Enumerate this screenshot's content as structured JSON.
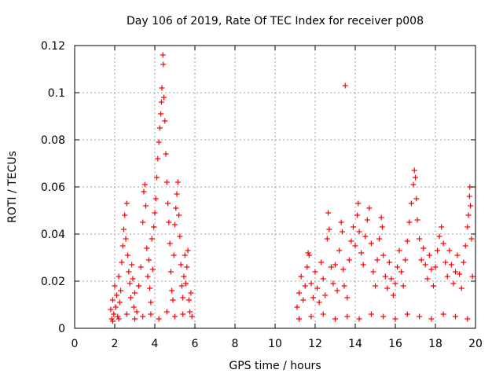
{
  "chart_data": {
    "type": "scatter",
    "title": "Day 106 of 2019, Rate Of TEC Index for receiver p008",
    "xlabel": "GPS time / hours",
    "ylabel": "ROTI / TECUs",
    "xlim": [
      0,
      20
    ],
    "ylim": [
      0,
      0.12
    ],
    "x_ticks": [
      "0",
      "2",
      "4",
      "6",
      "8",
      "10",
      "12",
      "14",
      "16",
      "18",
      "20"
    ],
    "y_ticks": [
      "0",
      "0.02",
      "0.04",
      "0.06",
      "0.08",
      "0.1",
      "0.12"
    ],
    "grid": true,
    "marker": "+",
    "color": "#ff0000",
    "series": [
      {
        "name": "ROTI",
        "points": [
          [
            1.8,
            0.008
          ],
          [
            1.85,
            0.004
          ],
          [
            1.9,
            0.012
          ],
          [
            1.95,
            0.006
          ],
          [
            2.0,
            0.018
          ],
          [
            2.05,
            0.009
          ],
          [
            2.1,
            0.014
          ],
          [
            2.15,
            0.005
          ],
          [
            2.2,
            0.022
          ],
          [
            2.25,
            0.011
          ],
          [
            2.3,
            0.016
          ],
          [
            2.35,
            0.028
          ],
          [
            2.4,
            0.035
          ],
          [
            2.45,
            0.042
          ],
          [
            2.5,
            0.048
          ],
          [
            2.55,
            0.038
          ],
          [
            2.6,
            0.053
          ],
          [
            2.65,
            0.031
          ],
          [
            2.7,
            0.024
          ],
          [
            2.75,
            0.019
          ],
          [
            2.8,
            0.013
          ],
          [
            2.85,
            0.027
          ],
          [
            2.9,
            0.021
          ],
          [
            2.95,
            0.009
          ],
          [
            3.0,
            0.015
          ],
          [
            3.1,
            0.007
          ],
          [
            3.2,
            0.018
          ],
          [
            3.3,
            0.026
          ],
          [
            3.4,
            0.045
          ],
          [
            3.45,
            0.058
          ],
          [
            3.5,
            0.061
          ],
          [
            3.55,
            0.052
          ],
          [
            3.6,
            0.034
          ],
          [
            3.65,
            0.022
          ],
          [
            3.7,
            0.029
          ],
          [
            3.75,
            0.017
          ],
          [
            3.8,
            0.011
          ],
          [
            3.85,
            0.038
          ],
          [
            3.9,
            0.025
          ],
          [
            3.95,
            0.043
          ],
          [
            4.0,
            0.049
          ],
          [
            4.05,
            0.055
          ],
          [
            4.1,
            0.064
          ],
          [
            4.15,
            0.072
          ],
          [
            4.2,
            0.079
          ],
          [
            4.25,
            0.085
          ],
          [
            4.3,
            0.091
          ],
          [
            4.33,
            0.096
          ],
          [
            4.35,
            0.102
          ],
          [
            4.4,
            0.116
          ],
          [
            4.42,
            0.112
          ],
          [
            4.45,
            0.098
          ],
          [
            4.5,
            0.088
          ],
          [
            4.55,
            0.074
          ],
          [
            4.6,
            0.062
          ],
          [
            4.65,
            0.053
          ],
          [
            4.7,
            0.045
          ],
          [
            4.75,
            0.036
          ],
          [
            4.8,
            0.024
          ],
          [
            4.85,
            0.016
          ],
          [
            4.9,
            0.012
          ],
          [
            4.95,
            0.031
          ],
          [
            5.0,
            0.044
          ],
          [
            5.05,
            0.051
          ],
          [
            5.1,
            0.057
          ],
          [
            5.15,
            0.062
          ],
          [
            5.2,
            0.048
          ],
          [
            5.25,
            0.039
          ],
          [
            5.3,
            0.027
          ],
          [
            5.35,
            0.018
          ],
          [
            5.4,
            0.013
          ],
          [
            5.45,
            0.022
          ],
          [
            5.5,
            0.031
          ],
          [
            5.55,
            0.019
          ],
          [
            5.6,
            0.026
          ],
          [
            5.65,
            0.033
          ],
          [
            5.7,
            0.012
          ],
          [
            5.75,
            0.007
          ],
          [
            5.8,
            0.015
          ],
          [
            5.85,
            0.005
          ],
          [
            1.9,
            0.003
          ],
          [
            2.2,
            0.004
          ],
          [
            2.6,
            0.006
          ],
          [
            3.0,
            0.004
          ],
          [
            3.4,
            0.005
          ],
          [
            3.8,
            0.006
          ],
          [
            4.2,
            0.004
          ],
          [
            4.6,
            0.007
          ],
          [
            5.0,
            0.005
          ],
          [
            5.4,
            0.006
          ],
          [
            11.1,
            0.009
          ],
          [
            11.2,
            0.015
          ],
          [
            11.3,
            0.022
          ],
          [
            11.4,
            0.012
          ],
          [
            11.5,
            0.018
          ],
          [
            11.6,
            0.026
          ],
          [
            11.65,
            0.032
          ],
          [
            11.7,
            0.031
          ],
          [
            11.8,
            0.019
          ],
          [
            11.9,
            0.013
          ],
          [
            12.0,
            0.024
          ],
          [
            12.1,
            0.017
          ],
          [
            12.2,
            0.011
          ],
          [
            12.3,
            0.028
          ],
          [
            12.4,
            0.021
          ],
          [
            12.5,
            0.014
          ],
          [
            12.6,
            0.038
          ],
          [
            12.65,
            0.049
          ],
          [
            12.7,
            0.042
          ],
          [
            12.8,
            0.026
          ],
          [
            12.9,
            0.019
          ],
          [
            13.0,
            0.027
          ],
          [
            13.1,
            0.016
          ],
          [
            13.2,
            0.033
          ],
          [
            13.3,
            0.045
          ],
          [
            13.35,
            0.041
          ],
          [
            13.4,
            0.025
          ],
          [
            13.45,
            0.018
          ],
          [
            13.5,
            0.103
          ],
          [
            13.6,
            0.013
          ],
          [
            13.7,
            0.029
          ],
          [
            13.8,
            0.037
          ],
          [
            13.9,
            0.043
          ],
          [
            14.0,
            0.035
          ],
          [
            14.1,
            0.048
          ],
          [
            14.15,
            0.053
          ],
          [
            14.2,
            0.041
          ],
          [
            14.3,
            0.032
          ],
          [
            14.4,
            0.027
          ],
          [
            14.5,
            0.039
          ],
          [
            14.6,
            0.046
          ],
          [
            14.7,
            0.051
          ],
          [
            14.8,
            0.036
          ],
          [
            14.9,
            0.024
          ],
          [
            15.0,
            0.018
          ],
          [
            15.1,
            0.029
          ],
          [
            15.2,
            0.038
          ],
          [
            15.3,
            0.047
          ],
          [
            15.35,
            0.043
          ],
          [
            15.4,
            0.031
          ],
          [
            15.5,
            0.022
          ],
          [
            15.6,
            0.017
          ],
          [
            15.7,
            0.028
          ],
          [
            15.8,
            0.021
          ],
          [
            15.9,
            0.014
          ],
          [
            16.0,
            0.019
          ],
          [
            16.1,
            0.026
          ],
          [
            16.2,
            0.033
          ],
          [
            16.3,
            0.024
          ],
          [
            16.4,
            0.018
          ],
          [
            16.5,
            0.029
          ],
          [
            16.6,
            0.037
          ],
          [
            16.7,
            0.045
          ],
          [
            16.8,
            0.053
          ],
          [
            16.9,
            0.061
          ],
          [
            16.95,
            0.067
          ],
          [
            17.0,
            0.064
          ],
          [
            17.05,
            0.055
          ],
          [
            17.1,
            0.046
          ],
          [
            17.2,
            0.038
          ],
          [
            17.3,
            0.029
          ],
          [
            17.4,
            0.034
          ],
          [
            17.5,
            0.027
          ],
          [
            17.6,
            0.021
          ],
          [
            17.7,
            0.031
          ],
          [
            17.8,
            0.025
          ],
          [
            17.9,
            0.018
          ],
          [
            18.0,
            0.026
          ],
          [
            18.1,
            0.033
          ],
          [
            18.2,
            0.039
          ],
          [
            18.3,
            0.043
          ],
          [
            18.4,
            0.036
          ],
          [
            18.5,
            0.028
          ],
          [
            18.6,
            0.022
          ],
          [
            18.7,
            0.033
          ],
          [
            18.8,
            0.027
          ],
          [
            18.9,
            0.019
          ],
          [
            19.0,
            0.024
          ],
          [
            19.1,
            0.031
          ],
          [
            19.2,
            0.023
          ],
          [
            19.3,
            0.017
          ],
          [
            19.4,
            0.028
          ],
          [
            19.5,
            0.035
          ],
          [
            19.6,
            0.043
          ],
          [
            19.65,
            0.048
          ],
          [
            19.7,
            0.056
          ],
          [
            19.72,
            0.06
          ],
          [
            19.75,
            0.052
          ],
          [
            19.8,
            0.038
          ],
          [
            19.85,
            0.022
          ],
          [
            11.2,
            0.004
          ],
          [
            11.8,
            0.005
          ],
          [
            12.4,
            0.006
          ],
          [
            13.0,
            0.004
          ],
          [
            13.6,
            0.005
          ],
          [
            14.2,
            0.004
          ],
          [
            14.8,
            0.006
          ],
          [
            15.4,
            0.005
          ],
          [
            16.0,
            0.004
          ],
          [
            16.6,
            0.006
          ],
          [
            17.2,
            0.005
          ],
          [
            17.8,
            0.004
          ],
          [
            18.4,
            0.006
          ],
          [
            19.0,
            0.005
          ],
          [
            19.6,
            0.004
          ]
        ]
      }
    ]
  }
}
